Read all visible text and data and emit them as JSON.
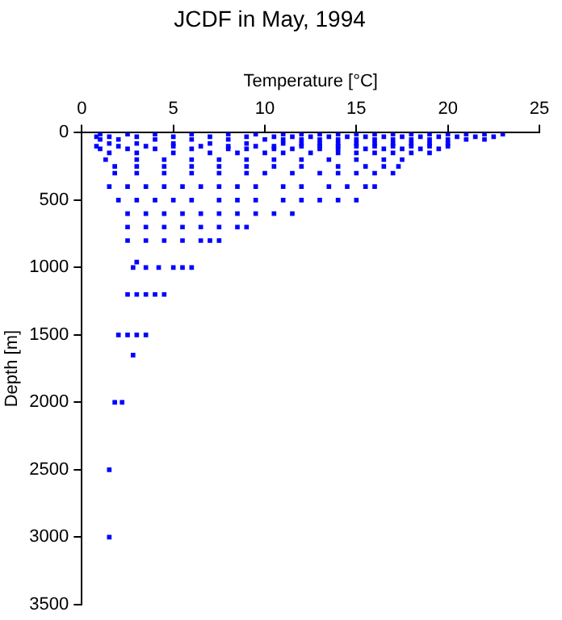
{
  "chart_data": {
    "type": "scatter",
    "title": "JCDF in May, 1994",
    "xlabel": "Temperature [°C]",
    "ylabel": "Depth [m]",
    "xlim": [
      0,
      25
    ],
    "xticks": [
      0,
      5,
      10,
      15,
      20,
      25
    ],
    "ylim": [
      3500,
      0
    ],
    "yticks": [
      0,
      500,
      1000,
      1500,
      2000,
      2500,
      3000,
      3500
    ],
    "grid": false,
    "legend": false,
    "marker": "square",
    "series": [
      {
        "color": "#0000ff",
        "x": [
          1,
          2.5,
          4,
          6,
          8,
          9.5,
          11,
          12,
          13,
          14,
          15,
          16,
          17,
          18,
          19,
          20,
          21,
          22,
          23,
          0.8,
          1.5,
          3,
          5,
          7,
          9,
          10.5,
          11.5,
          12.5,
          13.5,
          14.5,
          15.5,
          16.5,
          17.5,
          18.5,
          19.5,
          20.5,
          21.5,
          22.5,
          1,
          2,
          4,
          6,
          8,
          10,
          11,
          12,
          13,
          14,
          15,
          16,
          17,
          18,
          19,
          20,
          21,
          22,
          1.5,
          3,
          5,
          7,
          9,
          11,
          12,
          13,
          14,
          15,
          16,
          17,
          18,
          19,
          20,
          0.8,
          2,
          3.5,
          5,
          6.5,
          8,
          9.5,
          10.5,
          12,
          13,
          14,
          15,
          16,
          17,
          18,
          19,
          20,
          1,
          2.5,
          4,
          6,
          8,
          9,
          10.5,
          11.5,
          13,
          14,
          15.5,
          16.5,
          17.5,
          18.5,
          19.5,
          1.5,
          3,
          5,
          7,
          8.5,
          10,
          11,
          12.5,
          14,
          15,
          16,
          17,
          18,
          19,
          1.3,
          3,
          4.5,
          6,
          7.5,
          9,
          10.5,
          12,
          13.5,
          15,
          16.5,
          17.5,
          1.8,
          3,
          4.5,
          6,
          7.5,
          9,
          10.5,
          12,
          14,
          15.5,
          16.5,
          17.3,
          1.8,
          3,
          4.5,
          6,
          7.5,
          9,
          10,
          11.5,
          13,
          14,
          15,
          16,
          17,
          1.5,
          2.5,
          3.5,
          4.5,
          5.5,
          6.5,
          7.5,
          8.5,
          9.5,
          11,
          12,
          13.5,
          14.5,
          15.5,
          16,
          2,
          3,
          4,
          5,
          6,
          7.5,
          8.5,
          9.5,
          11,
          12,
          13,
          14,
          15,
          2.5,
          3.5,
          4.5,
          5.5,
          6.5,
          7.5,
          8.5,
          9.5,
          10.5,
          11.5,
          2.5,
          3.5,
          4.5,
          5.5,
          6.5,
          7.5,
          8.5,
          9,
          2.5,
          3.5,
          4.5,
          5.5,
          6.5,
          7,
          7.5,
          3,
          2.8,
          3.5,
          4.2,
          5,
          5.5,
          6,
          2.5,
          3,
          3.5,
          4,
          4.5,
          2,
          2.5,
          3,
          3.5,
          2.8,
          1.8,
          2.2,
          1.5,
          1.5
        ],
        "values": [
          10,
          10,
          10,
          10,
          10,
          10,
          10,
          10,
          10,
          10,
          10,
          10,
          10,
          10,
          10,
          10,
          10,
          10,
          10,
          30,
          30,
          30,
          30,
          30,
          30,
          30,
          30,
          30,
          30,
          30,
          30,
          30,
          30,
          30,
          30,
          30,
          30,
          30,
          50,
          50,
          50,
          50,
          50,
          50,
          50,
          50,
          50,
          50,
          50,
          50,
          50,
          50,
          50,
          50,
          50,
          50,
          80,
          80,
          80,
          80,
          80,
          80,
          80,
          80,
          80,
          80,
          80,
          80,
          80,
          80,
          80,
          100,
          100,
          100,
          100,
          100,
          100,
          100,
          100,
          100,
          100,
          100,
          100,
          100,
          100,
          100,
          100,
          100,
          120,
          120,
          120,
          120,
          120,
          120,
          120,
          120,
          120,
          120,
          120,
          120,
          120,
          120,
          120,
          150,
          150,
          150,
          150,
          150,
          150,
          150,
          150,
          150,
          150,
          150,
          150,
          150,
          150,
          200,
          200,
          200,
          200,
          200,
          200,
          200,
          200,
          200,
          200,
          200,
          200,
          250,
          250,
          250,
          250,
          250,
          250,
          250,
          250,
          250,
          250,
          250,
          250,
          300,
          300,
          300,
          300,
          300,
          300,
          300,
          300,
          300,
          300,
          300,
          300,
          300,
          400,
          400,
          400,
          400,
          400,
          400,
          400,
          400,
          400,
          400,
          400,
          400,
          400,
          400,
          400,
          500,
          500,
          500,
          500,
          500,
          500,
          500,
          500,
          500,
          500,
          500,
          500,
          500,
          600,
          600,
          600,
          600,
          600,
          600,
          600,
          600,
          600,
          600,
          700,
          700,
          700,
          700,
          700,
          700,
          700,
          700,
          800,
          800,
          800,
          800,
          800,
          800,
          800,
          960,
          1000,
          1000,
          1000,
          1000,
          1000,
          1000,
          1200,
          1200,
          1200,
          1200,
          1200,
          1500,
          1500,
          1500,
          1500,
          1650,
          2000,
          2000,
          2500,
          3000
        ]
      }
    ]
  }
}
